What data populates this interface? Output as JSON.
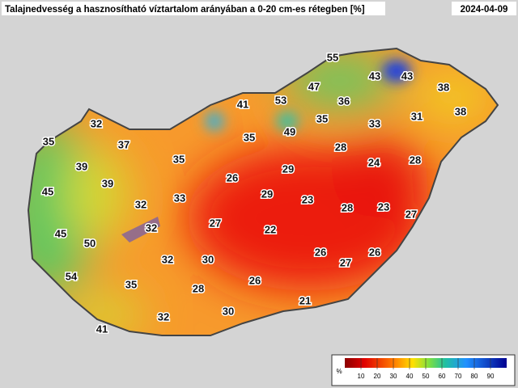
{
  "title": "Talajnedvesség a hasznosítható víztartalom arányában a 0-20 cm-es rétegben [%]",
  "date": "2024-04-09",
  "stations": [
    55,
    43,
    43,
    38,
    47,
    53,
    41,
    36,
    31,
    38,
    32,
    35,
    33,
    49,
    35,
    37,
    35,
    28,
    24,
    28,
    39,
    35,
    29,
    26,
    45,
    39,
    29,
    23,
    33,
    32,
    28,
    23,
    27,
    27,
    32,
    22,
    45,
    50,
    26,
    26,
    27,
    32,
    30,
    54,
    35,
    26,
    28,
    21,
    30,
    32,
    41
  ],
  "colorbar": {
    "unit": "%",
    "ticks": [
      10,
      20,
      30,
      40,
      50,
      60,
      70,
      80,
      90
    ]
  }
}
